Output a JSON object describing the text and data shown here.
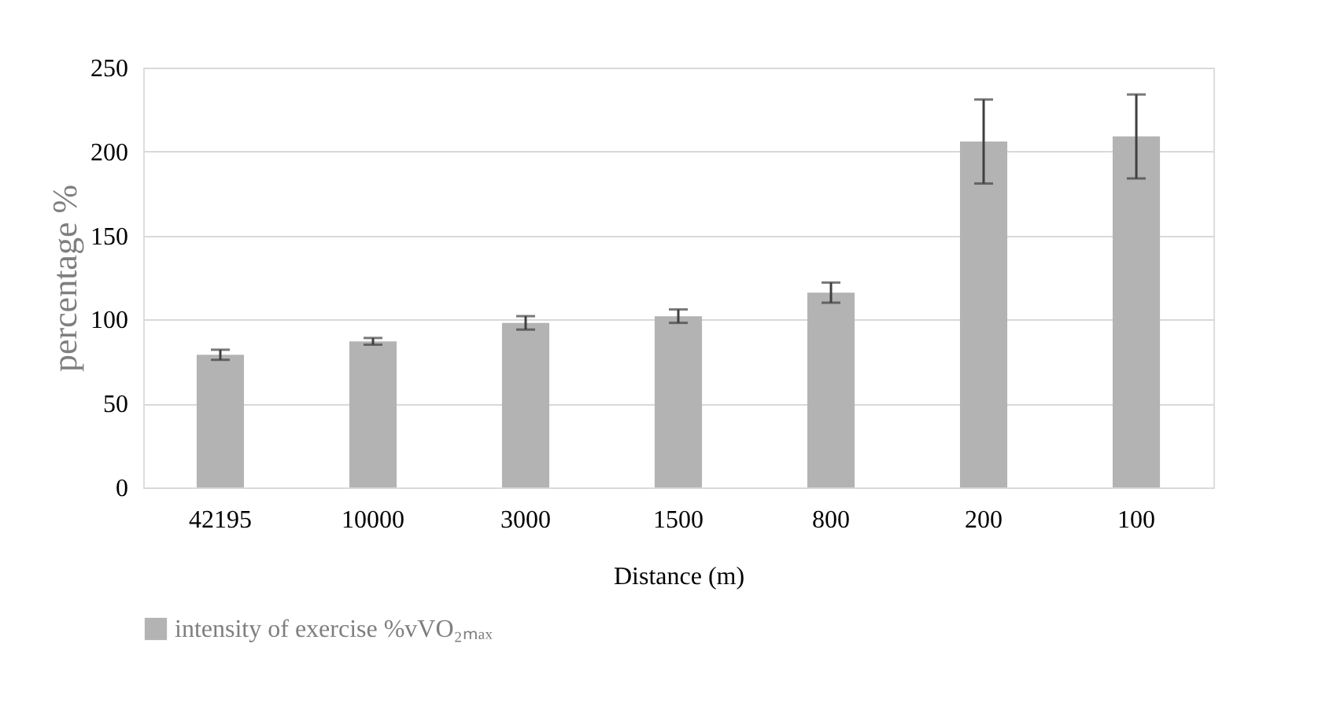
{
  "chart_data": {
    "type": "bar",
    "xlabel": "Distance (m)",
    "ylabel": "percentage %",
    "categories": [
      "42195",
      "10000",
      "3000",
      "1500",
      "800",
      "200",
      "100"
    ],
    "series": [
      {
        "name": "intensity of exercise %vVO₂ₘₐₓ",
        "color": "#b3b3b3",
        "values": [
          79,
          87,
          98,
          102,
          116,
          206,
          209
        ],
        "errors": [
          3,
          2,
          4,
          4,
          6,
          25,
          25
        ]
      }
    ],
    "ylim": [
      0,
      250
    ],
    "yticks": [
      0,
      50,
      100,
      150,
      200,
      250
    ],
    "grid": "y",
    "legend": "bottom"
  }
}
